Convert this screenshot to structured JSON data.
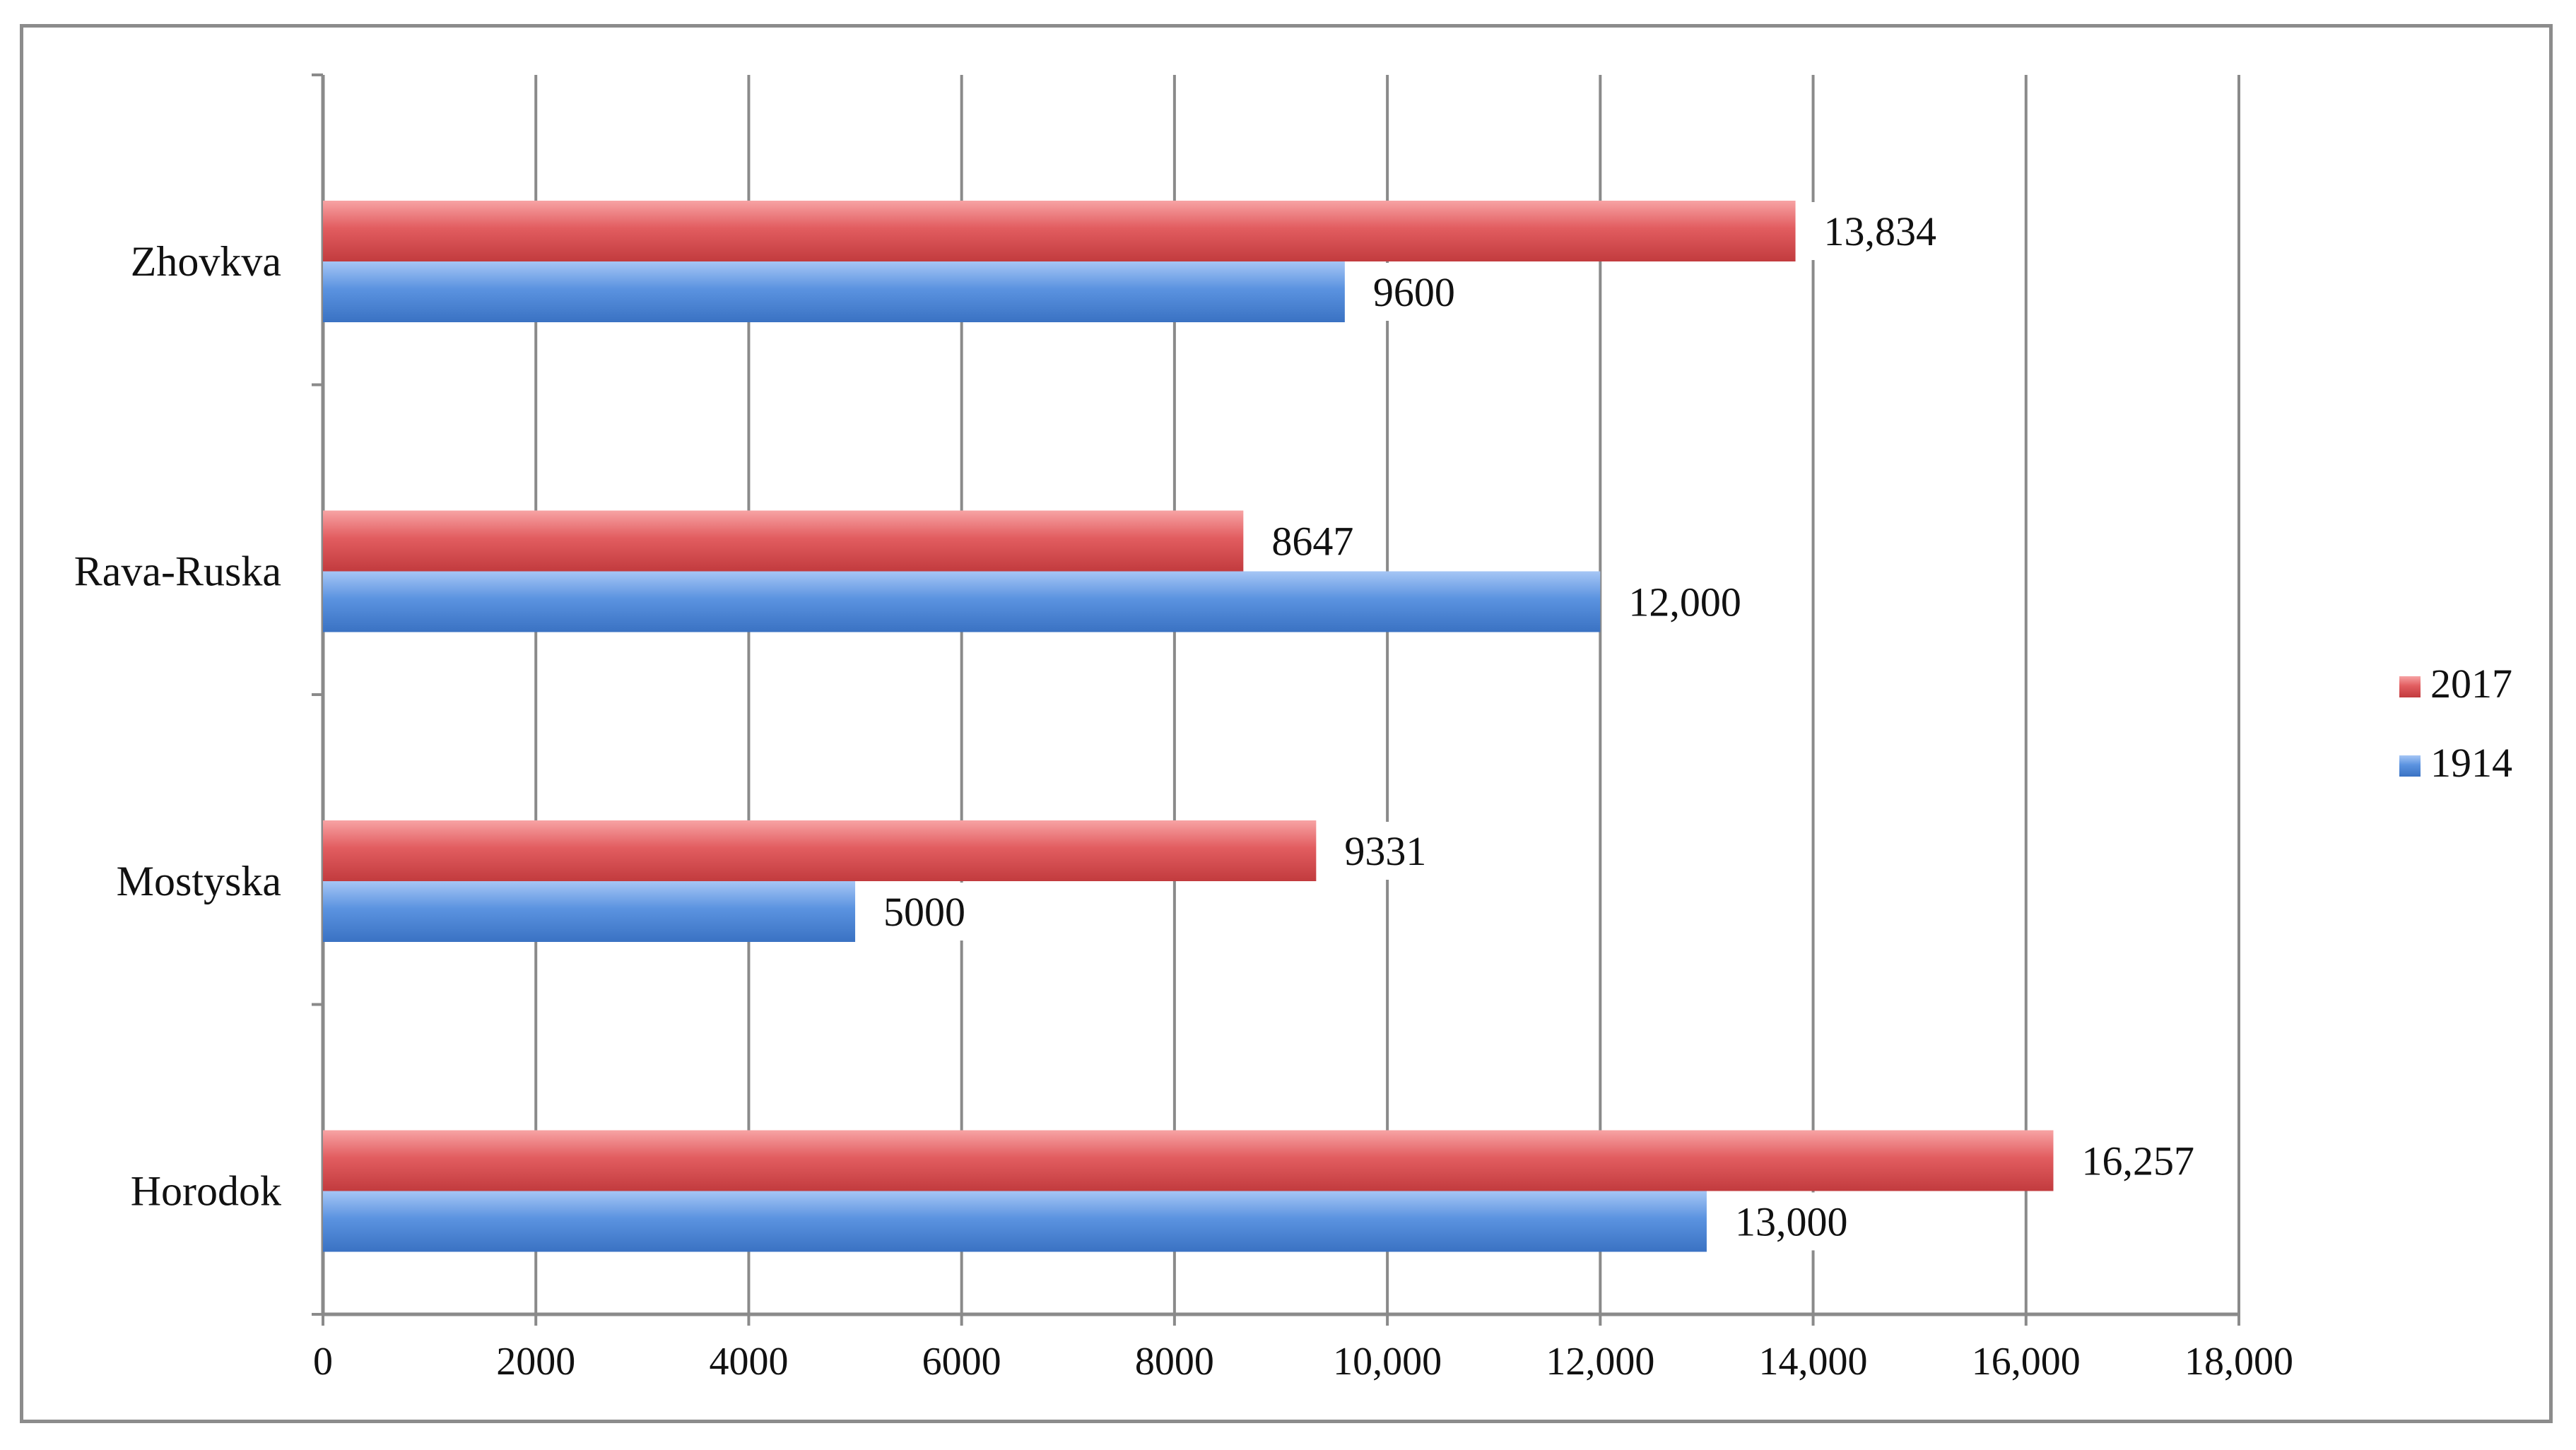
{
  "chart_data": {
    "type": "bar",
    "orientation": "horizontal",
    "categories": [
      "Zhovkva",
      "Rava-Ruska",
      "Mostyska",
      "Horodok"
    ],
    "series": [
      {
        "name": "2017",
        "color": "#d9484b",
        "values": [
          13834,
          8647,
          9331,
          16257
        ],
        "labels": [
          "13,834",
          "8647",
          "9331",
          "16,257"
        ]
      },
      {
        "name": "1914",
        "color": "#4a86d6",
        "values": [
          9600,
          12000,
          5000,
          13000
        ],
        "labels": [
          "9600",
          "12,000",
          "5000",
          "13,000"
        ]
      }
    ],
    "xlim": [
      0,
      18000
    ],
    "x_ticks": [
      0,
      2000,
      4000,
      6000,
      8000,
      10000,
      12000,
      14000,
      16000,
      18000
    ],
    "x_tick_labels": [
      "0",
      "2000",
      "4000",
      "6000",
      "8000",
      "10,000",
      "12,000",
      "14,000",
      "16,000",
      "18,000"
    ],
    "title": "",
    "xlabel": "",
    "ylabel": "",
    "grid": "vertical",
    "legend_position": "right",
    "legend_order": [
      "2017",
      "1914"
    ]
  }
}
